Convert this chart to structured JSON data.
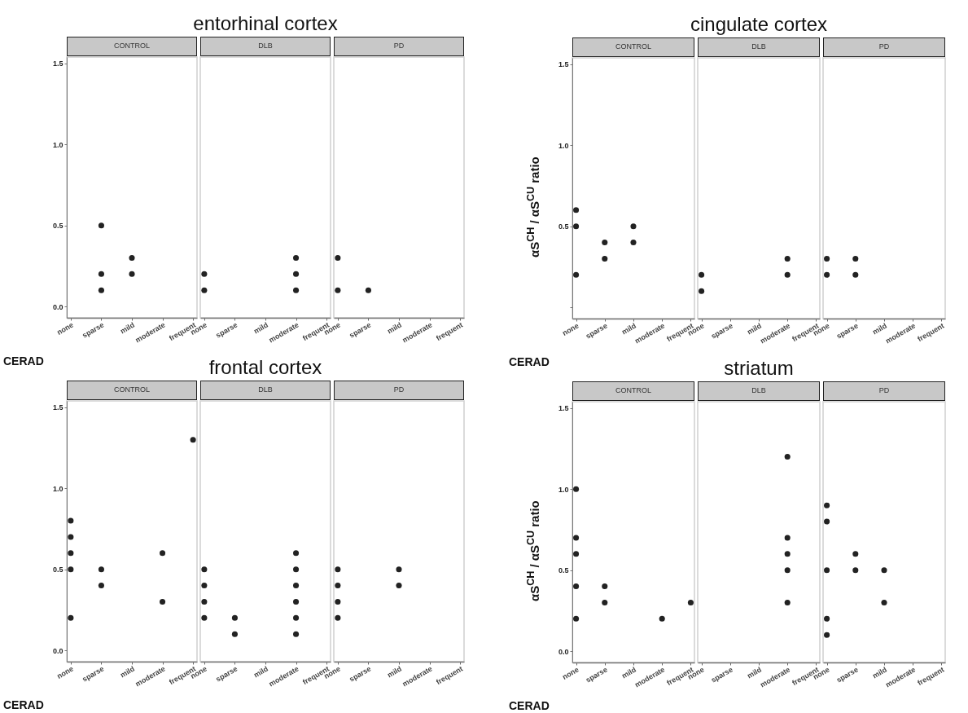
{
  "chart_data": [
    {
      "type": "scatter",
      "title": "CONTROL",
      "xlabel": "CERAD",
      "categories": [
        "none",
        "sparse",
        "mild",
        "moderate",
        "frequent"
      ],
      "marker": "circle",
      "ylim": [
        -0.07,
        1.54
      ],
      "yticks": [
        {
          "value": 0,
          "label": "0.0"
        },
        {
          "value": 0.5,
          "label": "0.5"
        },
        {
          "value": 1,
          "label": "1.0"
        },
        {
          "value": 1.5,
          "label": "1.5"
        }
      ],
      "series": [
        {
          "color": "#222222",
          "x": [
            "sparse",
            "sparse",
            "sparse",
            "mild",
            "mild"
          ],
          "values": [
            0.5,
            0.2,
            0.1,
            0.3,
            0.2
          ]
        }
      ]
    },
    {
      "type": "scatter",
      "title": "DLB",
      "annotations": [
        "entorhinal cortex"
      ],
      "categories": [
        "none",
        "sparse",
        "mild",
        "moderate",
        "frequent"
      ],
      "marker": "circle",
      "tick_labels": "x",
      "ylim": [
        -0.07,
        1.54
      ],
      "series": [
        {
          "color": "#222222",
          "x": [
            "none",
            "none",
            "moderate",
            "moderate",
            "moderate"
          ],
          "values": [
            0.2,
            0.1,
            0.3,
            0.2,
            0.1
          ]
        }
      ]
    },
    {
      "type": "scatter",
      "title": "PD",
      "categories": [
        "none",
        "sparse",
        "mild",
        "moderate",
        "frequent"
      ],
      "marker": "circle",
      "tick_labels": "x",
      "ylim": [
        -0.07,
        1.54
      ],
      "series": [
        {
          "color": "#222222",
          "x": [
            "none",
            "none",
            "sparse"
          ],
          "values": [
            0.3,
            0.1,
            0.1
          ]
        }
      ]
    },
    {
      "type": "scatter",
      "title": "CONTROL",
      "xlabel": "CERAD",
      "ylabel": "αS$^{CH}$ / αS$^{CU}$ ratio",
      "categories": [
        "none",
        "sparse",
        "mild",
        "moderate",
        "frequent"
      ],
      "marker": "circle",
      "ylim": [
        -0.07,
        1.54
      ],
      "yticks": [
        {
          "value": 0,
          "label": null
        },
        {
          "value": 0.5,
          "label": "0.5"
        },
        {
          "value": 1,
          "label": "1.0"
        },
        {
          "value": 1.5,
          "label": "1.5"
        }
      ],
      "series": [
        {
          "color": "#222222",
          "x": [
            "none",
            "none",
            "none",
            "sparse",
            "sparse",
            "mild",
            "mild"
          ],
          "values": [
            0.6,
            0.5,
            0.2,
            0.4,
            0.3,
            0.5,
            0.4
          ]
        }
      ]
    },
    {
      "type": "scatter",
      "title": "DLB",
      "annotations": [
        "cingulate cortex"
      ],
      "categories": [
        "none",
        "sparse",
        "mild",
        "moderate",
        "frequent"
      ],
      "marker": "circle",
      "tick_labels": "x",
      "ylim": [
        -0.07,
        1.54
      ],
      "series": [
        {
          "color": "#222222",
          "x": [
            "none",
            "none",
            "moderate",
            "moderate"
          ],
          "values": [
            0.2,
            0.1,
            0.3,
            0.2
          ]
        }
      ]
    },
    {
      "type": "scatter",
      "title": "PD",
      "categories": [
        "none",
        "sparse",
        "mild",
        "moderate",
        "frequent"
      ],
      "marker": "circle",
      "tick_labels": "x",
      "ylim": [
        -0.07,
        1.54
      ],
      "series": [
        {
          "color": "#222222",
          "x": [
            "none",
            "none",
            "sparse",
            "sparse"
          ],
          "values": [
            0.3,
            0.2,
            0.3,
            0.2
          ]
        }
      ]
    },
    {
      "type": "scatter",
      "title": "CONTROL",
      "xlabel": "CERAD",
      "categories": [
        "none",
        "sparse",
        "mild",
        "moderate",
        "frequent"
      ],
      "marker": "circle",
      "ylim": [
        -0.07,
        1.54
      ],
      "yticks": [
        {
          "value": 0,
          "label": "0.0"
        },
        {
          "value": 0.5,
          "label": "0.5"
        },
        {
          "value": 1,
          "label": "1.0"
        },
        {
          "value": 1.5,
          "label": "1.5"
        }
      ],
      "series": [
        {
          "color": "#222222",
          "x": [
            "none",
            "none",
            "none",
            "none",
            "none",
            "sparse",
            "sparse",
            "moderate",
            "moderate",
            "frequent"
          ],
          "values": [
            0.8,
            0.7,
            0.6,
            0.5,
            0.2,
            0.5,
            0.4,
            0.6,
            0.3,
            1.3
          ]
        }
      ]
    },
    {
      "type": "scatter",
      "title": "DLB",
      "annotations": [
        "frontal cortex"
      ],
      "categories": [
        "none",
        "sparse",
        "mild",
        "moderate",
        "frequent"
      ],
      "marker": "circle",
      "tick_labels": "x",
      "ylim": [
        -0.07,
        1.54
      ],
      "series": [
        {
          "color": "#222222",
          "x": [
            "none",
            "none",
            "none",
            "none",
            "sparse",
            "sparse",
            "moderate",
            "moderate",
            "moderate",
            "moderate",
            "moderate",
            "moderate"
          ],
          "values": [
            0.5,
            0.4,
            0.3,
            0.2,
            0.2,
            0.1,
            0.6,
            0.5,
            0.4,
            0.3,
            0.2,
            0.1
          ]
        }
      ]
    },
    {
      "type": "scatter",
      "title": "PD",
      "categories": [
        "none",
        "sparse",
        "mild",
        "moderate",
        "frequent"
      ],
      "marker": "circle",
      "tick_labels": "x",
      "ylim": [
        -0.07,
        1.54
      ],
      "series": [
        {
          "color": "#222222",
          "x": [
            "none",
            "none",
            "none",
            "none",
            "mild",
            "mild"
          ],
          "values": [
            0.5,
            0.4,
            0.3,
            0.2,
            0.5,
            0.4
          ]
        }
      ]
    },
    {
      "type": "scatter",
      "title": "CONTROL",
      "xlabel": "CERAD",
      "ylabel": "αS$^{CH}$ / αS$^{CU}$ ratio",
      "categories": [
        "none",
        "sparse",
        "mild",
        "moderate",
        "frequent"
      ],
      "marker": "circle",
      "ylim": [
        -0.07,
        1.54
      ],
      "yticks": [
        {
          "value": 0,
          "label": "0.0"
        },
        {
          "value": 0.5,
          "label": "0.5"
        },
        {
          "value": 1,
          "label": "1.0"
        },
        {
          "value": 1.5,
          "label": "1.5"
        }
      ],
      "series": [
        {
          "color": "#222222",
          "x": [
            "none",
            "none",
            "none",
            "none",
            "none",
            "sparse",
            "sparse",
            "moderate",
            "frequent"
          ],
          "values": [
            1.0,
            0.7,
            0.6,
            0.4,
            0.2,
            0.4,
            0.3,
            0.2,
            0.3
          ]
        }
      ]
    },
    {
      "type": "scatter",
      "title": "DLB",
      "annotations": [
        "striatum"
      ],
      "categories": [
        "none",
        "sparse",
        "mild",
        "moderate",
        "frequent"
      ],
      "marker": "circle",
      "tick_labels": "x",
      "ylim": [
        -0.07,
        1.54
      ],
      "series": [
        {
          "color": "#222222",
          "x": [
            "moderate",
            "moderate",
            "moderate",
            "moderate",
            "moderate"
          ],
          "values": [
            1.2,
            0.7,
            0.6,
            0.5,
            0.3
          ]
        }
      ]
    },
    {
      "type": "scatter",
      "title": "PD",
      "categories": [
        "none",
        "sparse",
        "mild",
        "moderate",
        "frequent"
      ],
      "marker": "circle",
      "tick_labels": "x",
      "ylim": [
        -0.07,
        1.54
      ],
      "series": [
        {
          "color": "#222222",
          "x": [
            "none",
            "none",
            "none",
            "none",
            "none",
            "sparse",
            "sparse",
            "mild",
            "mild"
          ],
          "values": [
            0.9,
            0.8,
            0.5,
            0.2,
            0.1,
            0.6,
            0.5,
            0.5,
            0.3
          ]
        }
      ]
    }
  ]
}
